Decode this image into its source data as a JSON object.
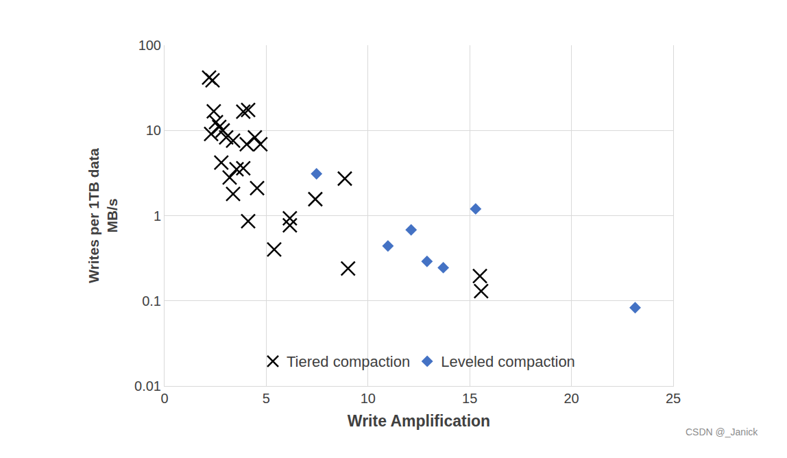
{
  "chart_data": {
    "type": "scatter",
    "x_label": "Write Amplification",
    "y_label": [
      "Writes per 1TB data",
      "MB/s"
    ],
    "xlim": [
      0,
      25
    ],
    "xticks": [
      0,
      5,
      10,
      15,
      20,
      25
    ],
    "ylim": [
      0.01,
      100
    ],
    "yticks": [
      0.01,
      0.1,
      1,
      10,
      100
    ],
    "log": "y",
    "grid": true,
    "legend": "bottom",
    "annotations": [
      "CSDN @_Janick"
    ],
    "series": [
      {
        "name": "Tiered compaction",
        "color": "#000000",
        "marker": "x",
        "x": [
          2.19,
          2.36,
          2.42,
          2.29,
          2.53,
          2.69,
          2.86,
          3.03,
          3.87,
          4.11,
          4.44,
          4.71,
          4.04,
          3.37,
          2.79,
          3.54,
          3.2,
          3.87,
          3.37,
          4.55,
          4.11,
          5.39,
          6.16,
          6.16,
          7.41,
          8.86,
          9.02,
          15.5,
          15.56
        ],
        "values": [
          41.8,
          38.8,
          16.8,
          9.1,
          12.5,
          11.0,
          10.0,
          8.3,
          16.6,
          17.4,
          8.3,
          6.9,
          6.9,
          7.6,
          4.2,
          3.5,
          2.8,
          3.6,
          1.8,
          2.1,
          0.86,
          0.4,
          0.93,
          0.77,
          1.56,
          2.72,
          0.24,
          0.195,
          0.13
        ]
      },
      {
        "name": "Leveled compaction",
        "color": "#4472c4",
        "marker": "diamond",
        "x": [
          7.47,
          10.98,
          12.12,
          12.9,
          13.7,
          15.29,
          23.13
        ],
        "values": [
          3.1,
          0.44,
          0.68,
          0.29,
          0.245,
          1.2,
          0.083
        ]
      }
    ]
  }
}
